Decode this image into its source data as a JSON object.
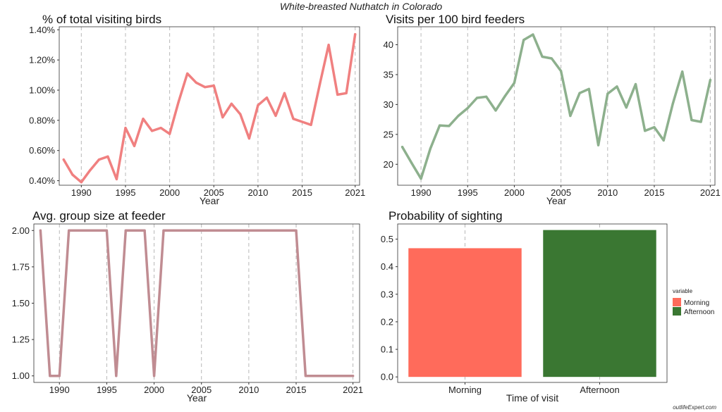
{
  "title": "White-breasted Nuthatch in Colorado",
  "watermark": "outlifeExpert.com",
  "chart_data": [
    {
      "type": "line",
      "title": "% of total visiting birds",
      "xlabel": "Year",
      "ylabel": "",
      "color": "#F08080",
      "xlim": [
        1987.5,
        2021.5
      ],
      "ylim": [
        0.37,
        1.42
      ],
      "xticks": [
        1990,
        1995,
        2000,
        2005,
        2010,
        2015,
        2021
      ],
      "yticks": [
        0.4,
        0.6,
        0.8,
        1.0,
        1.2,
        1.4
      ],
      "ytick_labels": [
        "0.40%",
        "0.60%",
        "0.80%",
        "1.00%",
        "1.20%",
        "1.40%"
      ],
      "grid": "vertical dashed",
      "x": [
        1988,
        1989,
        1990,
        1991,
        1992,
        1993,
        1994,
        1995,
        1996,
        1997,
        1998,
        1999,
        2000,
        2001,
        2002,
        2003,
        2004,
        2005,
        2006,
        2007,
        2008,
        2009,
        2010,
        2011,
        2012,
        2013,
        2014,
        2015,
        2016,
        2017,
        2018,
        2019,
        2020,
        2021
      ],
      "values": [
        0.54,
        0.44,
        0.39,
        0.47,
        0.54,
        0.56,
        0.41,
        0.75,
        0.63,
        0.81,
        0.73,
        0.75,
        0.71,
        0.92,
        1.11,
        1.05,
        1.02,
        1.03,
        0.82,
        0.91,
        0.84,
        0.68,
        0.9,
        0.95,
        0.83,
        0.98,
        0.81,
        0.79,
        0.77,
        1.04,
        1.3,
        0.97,
        0.98,
        1.37
      ]
    },
    {
      "type": "line",
      "title": "Visits per 100 bird feeders",
      "xlabel": "Year",
      "ylabel": "",
      "color": "#8DB08D",
      "xlim": [
        1987.5,
        2021.5
      ],
      "ylim": [
        16.5,
        43.0
      ],
      "xticks": [
        1990,
        1995,
        2000,
        2005,
        2010,
        2015,
        2021
      ],
      "yticks": [
        20,
        25,
        30,
        35,
        40
      ],
      "ytick_labels": [
        "20",
        "25",
        "30",
        "35",
        "40"
      ],
      "grid": "vertical dashed",
      "x": [
        1988,
        1989,
        1990,
        1991,
        1992,
        1993,
        1994,
        1995,
        1996,
        1997,
        1998,
        1999,
        2000,
        2001,
        2002,
        2003,
        2004,
        2005,
        2006,
        2007,
        2008,
        2009,
        2010,
        2011,
        2012,
        2013,
        2014,
        2015,
        2016,
        2017,
        2018,
        2019,
        2020,
        2021
      ],
      "values": [
        22.9,
        20.2,
        17.6,
        22.6,
        26.5,
        26.4,
        28.1,
        29.4,
        31.1,
        31.3,
        29.0,
        31.4,
        33.6,
        40.8,
        41.7,
        38.0,
        37.7,
        35.6,
        28.1,
        31.9,
        32.6,
        23.2,
        31.8,
        33.0,
        29.5,
        33.4,
        25.6,
        26.2,
        24.0,
        30.2,
        35.5,
        27.4,
        27.1,
        34.1
      ]
    },
    {
      "type": "line",
      "title": "Avg. group size at feeder",
      "xlabel": "Year",
      "ylabel": "",
      "color": "#C08C92",
      "xlim": [
        1987.3,
        2021.7
      ],
      "ylim": [
        0.955,
        2.045
      ],
      "xticks": [
        1990,
        1995,
        2000,
        2005,
        2010,
        2015,
        2021
      ],
      "yticks": [
        1.0,
        1.25,
        1.5,
        1.75,
        2.0
      ],
      "ytick_labels": [
        "1.00",
        "1.25",
        "1.50",
        "1.75",
        "2.00"
      ],
      "grid": "vertical dashed",
      "x": [
        1988,
        1989,
        1990,
        1991,
        1992,
        1993,
        1994,
        1995,
        1996,
        1997,
        1998,
        1999,
        2000,
        2001,
        2002,
        2003,
        2004,
        2005,
        2006,
        2007,
        2008,
        2009,
        2010,
        2011,
        2012,
        2013,
        2014,
        2015,
        2016,
        2017,
        2018,
        2019,
        2020,
        2021
      ],
      "values": [
        2,
        1,
        1,
        2,
        2,
        2,
        2,
        2,
        1,
        2,
        2,
        2,
        1,
        2,
        2,
        2,
        2,
        2,
        2,
        2,
        2,
        2,
        2,
        2,
        2,
        2,
        2,
        2,
        1,
        1,
        1,
        1,
        1,
        1
      ]
    },
    {
      "type": "bar",
      "title": "Probability of sighting",
      "xlabel": "Time of visit",
      "ylabel": "",
      "categories": [
        "Morning",
        "Afternoon"
      ],
      "values": [
        0.467,
        0.533
      ],
      "colors": [
        "#FF6B5B",
        "#3A7732"
      ],
      "ylim": [
        -0.02,
        0.555
      ],
      "yticks": [
        0.0,
        0.1,
        0.2,
        0.3,
        0.4,
        0.5
      ],
      "ytick_labels": [
        "0.0",
        "0.1",
        "0.2",
        "0.3",
        "0.4",
        "0.5"
      ],
      "grid": "vertical dashed",
      "legend": {
        "title": "variable",
        "position": "right",
        "entries": [
          "Morning",
          "Afternoon"
        ]
      }
    }
  ]
}
